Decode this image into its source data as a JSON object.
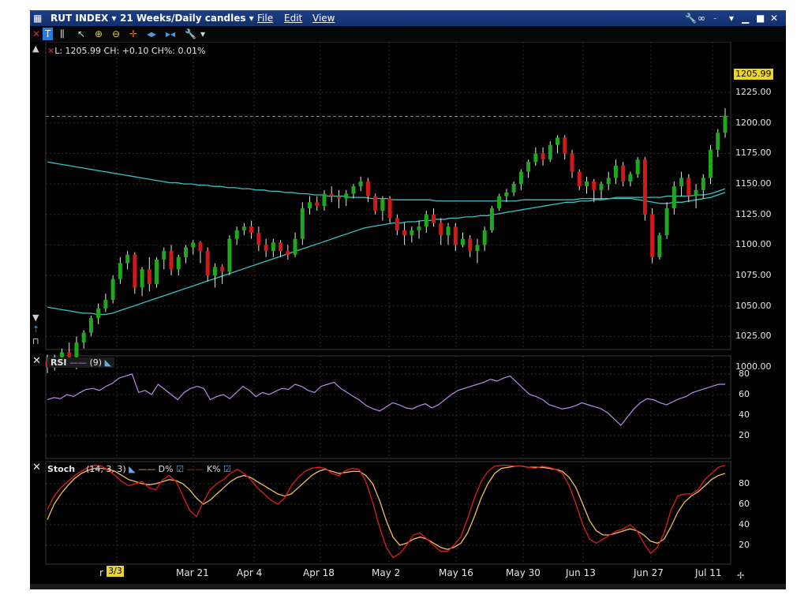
{
  "window": {
    "symbol": "RUT INDEX ▾",
    "period": "21 Weeks/Daily candles ▾",
    "menus": [
      "File",
      "Edit",
      "View"
    ],
    "window_controls": [
      "🔧",
      "∞",
      "‑",
      "▾",
      "▁",
      "■",
      "✕"
    ]
  },
  "toolbar": {
    "icons": [
      "close-icon",
      "time-icon",
      "bar-chart-icon",
      "cursor-icon",
      "zoom-in-icon",
      "zoom-out-icon",
      "crosshair-icon",
      "move-left-icon",
      "move-right-icon",
      "wrench-icon",
      "dropdown-icon"
    ]
  },
  "price_pane": {
    "info": "L: 1205.99 CH: +0.10 CH%: 0.01%",
    "last_price": "1205.99",
    "y_ticks": [
      "1225.00",
      "1200.00",
      "1175.00",
      "1150.00",
      "1125.00",
      "1100.00",
      "1075.00",
      "1050.00",
      "1025.00",
      "1000.00"
    ]
  },
  "rsi_pane": {
    "label": "RSI",
    "params": "(9)",
    "y_ticks": [
      "80",
      "60",
      "40",
      "20"
    ]
  },
  "stoch_pane": {
    "label": "Stoch",
    "params": "(14, 3, 3)",
    "d_label": "D%",
    "k_label": "K%",
    "y_ticks": [
      "80",
      "60",
      "40",
      "20"
    ]
  },
  "x_axis": {
    "date_tag": "3/3",
    "labels": [
      "r 7",
      "Mar 21",
      "Apr 4",
      "Apr 18",
      "May 2",
      "May 16",
      "May 30",
      "Jun 13",
      "Jun 27",
      "Jul 11"
    ]
  },
  "colors": {
    "up": "#1fa81f",
    "down": "#d01a1a",
    "ma": "#36c4c4",
    "rsi": "#b58ce8",
    "stoch_k": "#e01c1c",
    "stoch_d": "#f0c060",
    "tag": "#e9d52c"
  },
  "chart_data": [
    {
      "type": "candlestick",
      "title": "RUT INDEX",
      "ylim": [
        990,
        1230
      ],
      "candles": [
        [
          1005,
          1010,
          995,
          1000
        ],
        [
          1000,
          1010,
          997,
          1008
        ],
        [
          1008,
          1015,
          1005,
          1012
        ],
        [
          1012,
          1020,
          1005,
          1008
        ],
        [
          1008,
          1025,
          998,
          1020
        ],
        [
          1020,
          1030,
          1015,
          1028
        ],
        [
          1028,
          1042,
          1025,
          1040
        ],
        [
          1040,
          1052,
          1035,
          1048
        ],
        [
          1048,
          1060,
          1045,
          1055
        ],
        [
          1055,
          1075,
          1052,
          1072
        ],
        [
          1072,
          1090,
          1068,
          1085
        ],
        [
          1085,
          1095,
          1080,
          1092
        ],
        [
          1092,
          1094,
          1060,
          1065
        ],
        [
          1065,
          1082,
          1058,
          1080
        ],
        [
          1080,
          1090,
          1062,
          1068
        ],
        [
          1068,
          1090,
          1065,
          1088
        ],
        [
          1088,
          1098,
          1080,
          1095
        ],
        [
          1095,
          1100,
          1075,
          1080
        ],
        [
          1080,
          1092,
          1075,
          1090
        ],
        [
          1090,
          1100,
          1085,
          1098
        ],
        [
          1098,
          1104,
          1092,
          1102
        ],
        [
          1102,
          1103,
          1085,
          1095
        ],
        [
          1095,
          1098,
          1070,
          1075
        ],
        [
          1075,
          1085,
          1065,
          1082
        ],
        [
          1082,
          1084,
          1068,
          1078
        ],
        [
          1078,
          1108,
          1075,
          1105
        ],
        [
          1105,
          1115,
          1100,
          1112
        ],
        [
          1112,
          1118,
          1108,
          1115
        ],
        [
          1115,
          1120,
          1105,
          1110
        ],
        [
          1110,
          1115,
          1095,
          1100
        ],
        [
          1100,
          1105,
          1090,
          1095
        ],
        [
          1095,
          1105,
          1090,
          1102
        ],
        [
          1102,
          1104,
          1090,
          1095
        ],
        [
          1095,
          1100,
          1088,
          1092
        ],
        [
          1092,
          1110,
          1090,
          1105
        ],
        [
          1105,
          1135,
          1100,
          1130
        ],
        [
          1130,
          1140,
          1125,
          1135
        ],
        [
          1135,
          1140,
          1128,
          1132
        ],
        [
          1132,
          1145,
          1128,
          1142
        ],
        [
          1142,
          1148,
          1135,
          1140
        ],
        [
          1140,
          1145,
          1130,
          1138
        ],
        [
          1138,
          1145,
          1132,
          1142
        ],
        [
          1142,
          1150,
          1138,
          1148
        ],
        [
          1148,
          1156,
          1144,
          1152
        ],
        [
          1152,
          1155,
          1135,
          1140
        ],
        [
          1140,
          1142,
          1125,
          1128
        ],
        [
          1128,
          1140,
          1120,
          1138
        ],
        [
          1138,
          1140,
          1118,
          1122
        ],
        [
          1122,
          1125,
          1108,
          1112
        ],
        [
          1112,
          1118,
          1100,
          1108
        ],
        [
          1108,
          1115,
          1102,
          1112
        ],
        [
          1112,
          1120,
          1105,
          1115
        ],
        [
          1115,
          1128,
          1110,
          1125
        ],
        [
          1125,
          1130,
          1115,
          1118
        ],
        [
          1118,
          1122,
          1100,
          1108
        ],
        [
          1108,
          1118,
          1100,
          1115
        ],
        [
          1115,
          1118,
          1095,
          1100
        ],
        [
          1100,
          1110,
          1098,
          1105
        ],
        [
          1105,
          1108,
          1090,
          1095
        ],
        [
          1095,
          1105,
          1085,
          1100
        ],
        [
          1100,
          1115,
          1095,
          1112
        ],
        [
          1112,
          1132,
          1110,
          1130
        ],
        [
          1130,
          1142,
          1128,
          1140
        ],
        [
          1140,
          1146,
          1135,
          1143
        ],
        [
          1143,
          1152,
          1140,
          1150
        ],
        [
          1150,
          1162,
          1145,
          1160
        ],
        [
          1160,
          1170,
          1155,
          1168
        ],
        [
          1168,
          1180,
          1165,
          1175
        ],
        [
          1175,
          1180,
          1165,
          1170
        ],
        [
          1170,
          1185,
          1168,
          1182
        ],
        [
          1182,
          1190,
          1175,
          1188
        ],
        [
          1188,
          1190,
          1170,
          1175
        ],
        [
          1175,
          1178,
          1155,
          1160
        ],
        [
          1160,
          1162,
          1145,
          1148
        ],
        [
          1148,
          1156,
          1142,
          1152
        ],
        [
          1152,
          1154,
          1135,
          1145
        ],
        [
          1145,
          1152,
          1138,
          1150
        ],
        [
          1150,
          1160,
          1145,
          1155
        ],
        [
          1155,
          1170,
          1150,
          1165
        ],
        [
          1165,
          1168,
          1148,
          1152
        ],
        [
          1152,
          1160,
          1148,
          1158
        ],
        [
          1158,
          1172,
          1155,
          1170
        ],
        [
          1170,
          1172,
          1120,
          1125
        ],
        [
          1125,
          1130,
          1085,
          1090
        ],
        [
          1090,
          1110,
          1088,
          1108
        ],
        [
          1108,
          1135,
          1105,
          1130
        ],
        [
          1130,
          1152,
          1125,
          1148
        ],
        [
          1148,
          1160,
          1140,
          1155
        ],
        [
          1155,
          1158,
          1135,
          1140
        ],
        [
          1140,
          1150,
          1130,
          1145
        ],
        [
          1145,
          1158,
          1138,
          1155
        ],
        [
          1155,
          1182,
          1150,
          1178
        ],
        [
          1178,
          1195,
          1172,
          1192
        ],
        [
          1192,
          1212,
          1188,
          1206
        ]
      ],
      "series": [
        {
          "name": "slow average",
          "values": [
            1168,
            1167,
            1166,
            1165,
            1164,
            1163,
            1162,
            1161,
            1160,
            1159,
            1158,
            1157,
            1156,
            1155,
            1154,
            1153,
            1152,
            1151,
            1151,
            1150,
            1150,
            1149,
            1149,
            1148,
            1148,
            1147,
            1147,
            1146,
            1146,
            1145,
            1145,
            1144,
            1144,
            1143,
            1143,
            1142,
            1142,
            1141,
            1141,
            1140,
            1140,
            1140,
            1139,
            1139,
            1139,
            1138,
            1138,
            1138,
            1137,
            1137,
            1137,
            1137,
            1137,
            1137,
            1136,
            1136,
            1136,
            1136,
            1136,
            1136,
            1136,
            1136,
            1136,
            1136,
            1136,
            1136,
            1137,
            1137,
            1137,
            1137,
            1137,
            1137,
            1137,
            1137,
            1138,
            1138,
            1138,
            1138,
            1138,
            1139,
            1139,
            1139,
            1139,
            1139,
            1139,
            1139,
            1140,
            1140,
            1140,
            1140,
            1141,
            1141,
            1142,
            1144,
            1146
          ]
        },
        {
          "name": "fast average",
          "values": [
            1049,
            1048,
            1047,
            1046,
            1045,
            1044,
            1044,
            1043,
            1043,
            1044,
            1046,
            1048,
            1050,
            1052,
            1054,
            1056,
            1058,
            1060,
            1062,
            1064,
            1066,
            1068,
            1070,
            1072,
            1074,
            1076,
            1078,
            1080,
            1082,
            1084,
            1086,
            1088,
            1090,
            1092,
            1094,
            1096,
            1098,
            1100,
            1102,
            1104,
            1106,
            1108,
            1110,
            1112,
            1114,
            1115,
            1116,
            1117,
            1118,
            1118,
            1119,
            1119,
            1120,
            1120,
            1121,
            1121,
            1122,
            1122,
            1123,
            1123,
            1124,
            1124,
            1125,
            1126,
            1127,
            1128,
            1129,
            1130,
            1131,
            1132,
            1133,
            1134,
            1135,
            1135,
            1136,
            1136,
            1137,
            1137,
            1138,
            1138,
            1138,
            1138,
            1137,
            1136,
            1135,
            1134,
            1134,
            1135,
            1135,
            1136,
            1137,
            1138,
            1139,
            1141,
            1143
          ]
        }
      ]
    },
    {
      "type": "line",
      "title": "RSI (9)",
      "ylim": [
        10,
        90
      ],
      "series": [
        {
          "name": "RSI",
          "values": [
            55,
            57,
            56,
            60,
            58,
            62,
            65,
            66,
            64,
            68,
            71,
            76,
            78,
            80,
            62,
            64,
            60,
            70,
            65,
            60,
            55,
            62,
            66,
            68,
            66,
            55,
            58,
            60,
            56,
            62,
            68,
            64,
            58,
            62,
            60,
            63,
            66,
            65,
            70,
            68,
            64,
            62,
            68,
            70,
            72,
            66,
            62,
            58,
            54,
            49,
            46,
            44,
            48,
            52,
            50,
            47,
            46,
            49,
            51,
            47,
            50,
            55,
            60,
            64,
            66,
            68,
            70,
            72,
            75,
            73,
            76,
            78,
            72,
            66,
            60,
            58,
            55,
            50,
            48,
            46,
            47,
            49,
            52,
            50,
            48,
            46,
            42,
            36,
            30,
            38,
            46,
            52,
            56,
            55,
            52,
            50,
            53,
            56,
            58,
            62,
            64,
            66,
            68,
            70,
            70
          ]
        }
      ]
    },
    {
      "type": "line",
      "title": "Stoch (14, 3, 3)",
      "ylim": [
        0,
        100
      ],
      "series": [
        {
          "name": "D%",
          "values": [
            45,
            60,
            70,
            78,
            85,
            90,
            93,
            95,
            95,
            94,
            92,
            88,
            84,
            82,
            80,
            79,
            80,
            82,
            84,
            83,
            80,
            74,
            66,
            60,
            64,
            70,
            76,
            82,
            86,
            88,
            86,
            82,
            78,
            74,
            70,
            68,
            70,
            76,
            82,
            88,
            92,
            94,
            92,
            90,
            91,
            92,
            92,
            88,
            80,
            64,
            44,
            28,
            20,
            22,
            26,
            28,
            26,
            22,
            18,
            16,
            18,
            22,
            32,
            48,
            66,
            80,
            90,
            95,
            96,
            97,
            97,
            96,
            96,
            96,
            95,
            94,
            92,
            86,
            76,
            60,
            44,
            34,
            30,
            30,
            32,
            34,
            36,
            34,
            30,
            24,
            22,
            26,
            38,
            52,
            62,
            68,
            72,
            78,
            84,
            88,
            90
          ]
        },
        {
          "name": "K%",
          "values": [
            55,
            68,
            76,
            82,
            88,
            92,
            96,
            98,
            97,
            93,
            88,
            82,
            78,
            80,
            82,
            76,
            74,
            84,
            88,
            82,
            68,
            54,
            48,
            62,
            74,
            80,
            84,
            90,
            94,
            90,
            84,
            76,
            70,
            64,
            60,
            66,
            78,
            86,
            92,
            95,
            96,
            95,
            90,
            88,
            93,
            95,
            94,
            82,
            62,
            38,
            18,
            8,
            12,
            20,
            30,
            32,
            26,
            20,
            14,
            14,
            20,
            28,
            46,
            66,
            82,
            92,
            97,
            98,
            98,
            97,
            97,
            96,
            95,
            97,
            96,
            94,
            90,
            78,
            60,
            40,
            26,
            22,
            26,
            30,
            34,
            36,
            40,
            34,
            22,
            12,
            18,
            32,
            54,
            68,
            70,
            70,
            74,
            84,
            90,
            96,
            98
          ]
        }
      ]
    }
  ]
}
